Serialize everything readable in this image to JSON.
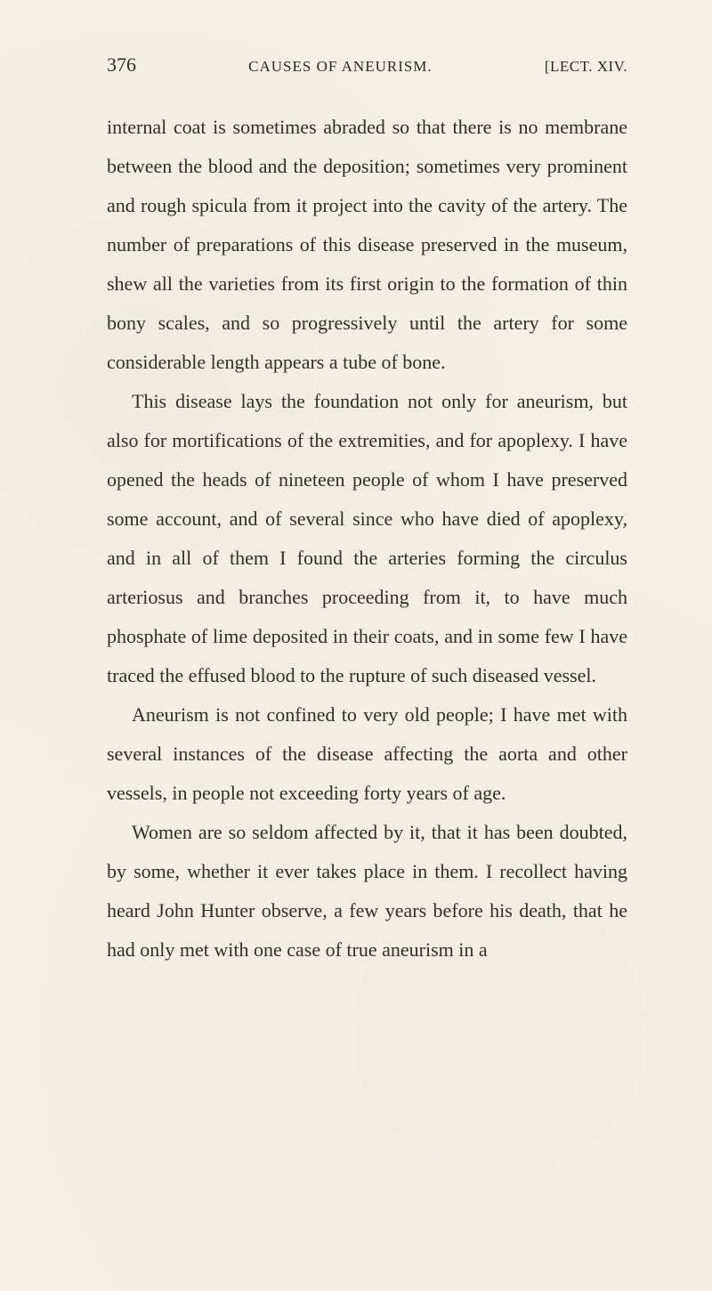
{
  "header": {
    "page_number": "376",
    "title": "CAUSES OF ANEURISM.",
    "section": "[LECT. XIV."
  },
  "paragraphs": [
    "internal coat is sometimes abraded so that there is no membrane between the blood and the deposition; sometimes very prominent and rough spicula from it project into the cavity of the artery. The number of preparations of this disease preserved in the museum, shew all the varieties from its first origin to the formation of thin bony scales, and so progressively until the artery for some considerable length appears a tube of bone.",
    "This disease lays the foundation not only for aneurism, but also for mortifications of the extremities, and for apoplexy. I have opened the heads of nineteen people of whom I have preserved some account, and of several since who have died of apoplexy, and in all of them I found the arteries forming the circulus arteriosus and branches proceeding from it, to have much phosphate of lime deposited in their coats, and in some few I have traced the effused blood to the rupture of such diseased vessel.",
    "Aneurism is not confined to very old people; I have met with several instances of the disease affecting the aorta and other vessels, in people not exceeding forty years of age.",
    "Women are so seldom affected by it, that it has been doubted, by some, whether it ever takes place in them. I recollect having heard John Hunter observe, a few years before his death, that he had only met with one case of true aneurism in a"
  ],
  "style": {
    "background_color": "#f4f0e6",
    "text_color": "#2a2a28",
    "body_fontsize": 22,
    "line_height": 2.0,
    "header_fontsize": 17,
    "page_number_fontsize": 22
  }
}
